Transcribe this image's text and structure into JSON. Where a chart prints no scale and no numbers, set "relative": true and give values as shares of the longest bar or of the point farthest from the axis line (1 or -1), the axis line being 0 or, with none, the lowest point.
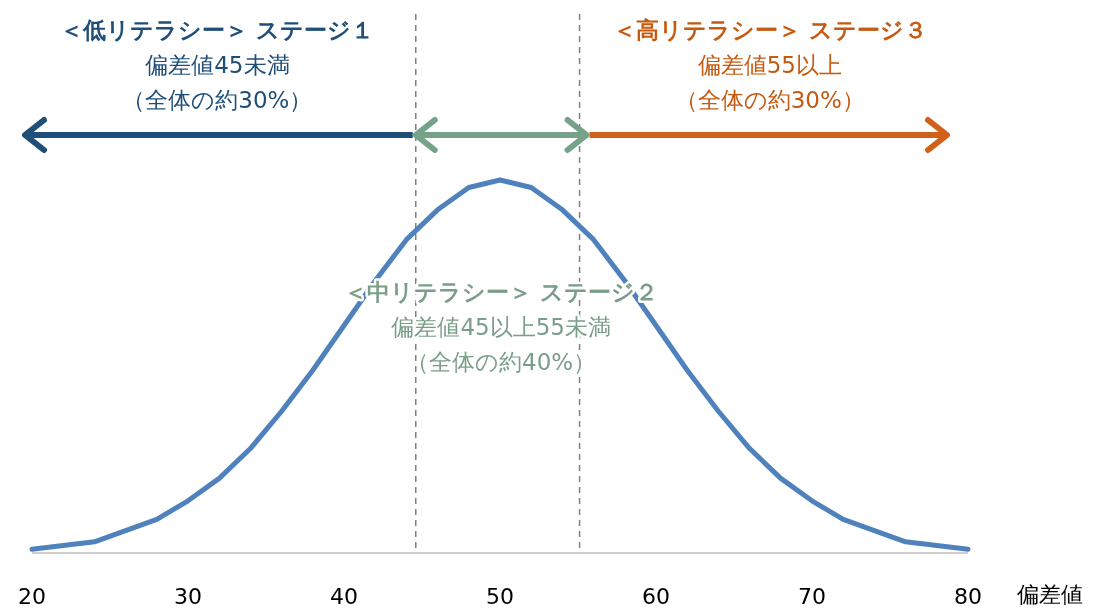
{
  "chart_data": {
    "type": "line",
    "relative": true,
    "x": [
      20,
      22,
      24,
      26,
      28,
      30,
      32,
      34,
      36,
      38,
      40,
      42,
      44,
      46,
      48,
      50,
      52,
      54,
      56,
      58,
      60,
      62,
      64,
      66,
      68,
      70,
      72,
      74,
      76,
      78,
      80
    ],
    "series": [
      {
        "color": "#4f81bd",
        "values": [
          0.01,
          0.02,
          0.03,
          0.06,
          0.09,
          0.14,
          0.2,
          0.28,
          0.38,
          0.49,
          0.61,
          0.73,
          0.84,
          0.92,
          0.98,
          1,
          0.98,
          0.92,
          0.84,
          0.73,
          0.61,
          0.49,
          0.38,
          0.28,
          0.2,
          0.14,
          0.09,
          0.06,
          0.03,
          0.02,
          0.01
        ]
      }
    ],
    "xlim": [
      20,
      80
    ],
    "xticks": [
      20,
      30,
      40,
      50,
      60,
      70,
      80
    ],
    "xlabel": "偏差値",
    "tick_labels": "x",
    "marker": "none",
    "line_style": "solid",
    "ref_lines": [
      {
        "axis": "x",
        "value": 44.6,
        "color": "#808080",
        "line_style": "dashed"
      },
      {
        "axis": "x",
        "value": 55.1,
        "color": "#808080",
        "line_style": "dashed"
      }
    ],
    "annotations": [
      "＜低リテラシー＞ ステージ１",
      "偏差値45未満",
      "（全体の約30%）",
      "＜中リテラシー＞ ステージ２",
      "偏差値45以上55未満",
      "（全体の約40%）",
      "＜高リテラシー＞ ステージ３",
      "偏差値55以上",
      "（全体の約30%）"
    ]
  }
}
